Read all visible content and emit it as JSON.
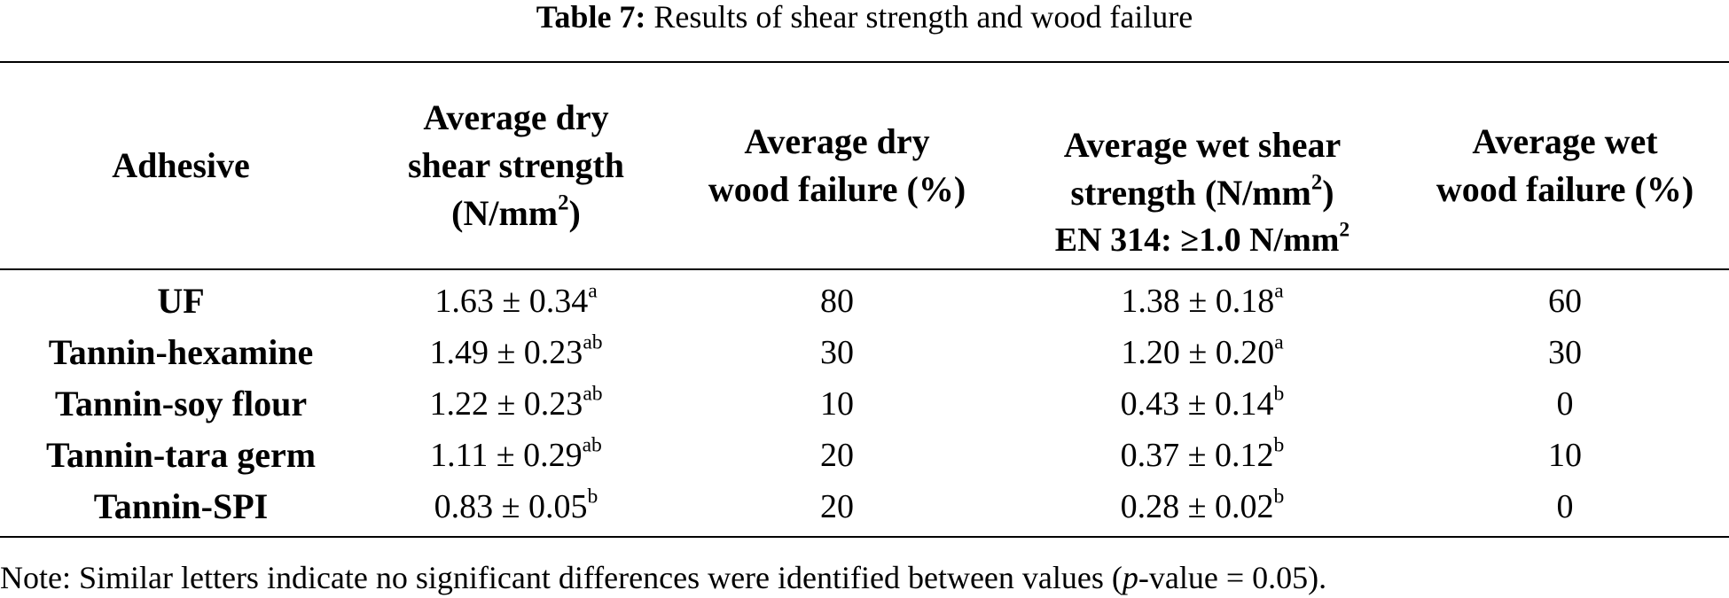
{
  "caption": {
    "label": "Table 7:",
    "text": "Results of shear strength and wood failure"
  },
  "headers": [
    {
      "line1": "Average dry",
      "line2": "shear strength",
      "line3": "(N/mm",
      "sup": "2",
      "close": ")"
    },
    {
      "line1": "Average dry",
      "line2": "wood failure (%)"
    },
    {
      "line1": "Average wet shear",
      "line2": "strength (N/mm",
      "sup": "2",
      "close": ")"
    },
    {
      "line1": "Average wet",
      "line2": "wood failure (%)"
    }
  ],
  "header_adhesive": "Adhesive",
  "standard_note": {
    "text": "EN 314: ≥1.0 N/mm",
    "sup": "2"
  },
  "rows": [
    {
      "adhesive": "UF",
      "dry_strength": "1.63 ± 0.34",
      "dry_sup": "a",
      "dry_failure": "80",
      "wet_strength": "1.38 ± 0.18",
      "wet_sup": "a",
      "wet_failure": "60"
    },
    {
      "adhesive": "Tannin-hexamine",
      "dry_strength": "1.49 ± 0.23",
      "dry_sup": "ab",
      "dry_failure": "30",
      "wet_strength": "1.20 ± 0.20",
      "wet_sup": "a",
      "wet_failure": "30"
    },
    {
      "adhesive": "Tannin-soy flour",
      "dry_strength": "1.22 ± 0.23",
      "dry_sup": "ab",
      "dry_failure": "10",
      "wet_strength": "0.43 ± 0.14",
      "wet_sup": "b",
      "wet_failure": "0"
    },
    {
      "adhesive": "Tannin-tara germ",
      "dry_strength": "1.11 ± 0.29",
      "dry_sup": "ab",
      "dry_failure": "20",
      "wet_strength": "0.37 ± 0.12",
      "wet_sup": "b",
      "wet_failure": "10"
    },
    {
      "adhesive": "Tannin-SPI",
      "dry_strength": "0.83 ± 0.05",
      "dry_sup": "b",
      "dry_failure": "20",
      "wet_strength": "0.28 ± 0.02",
      "wet_sup": "b",
      "wet_failure": "0"
    }
  ],
  "note": {
    "before": "Note: Similar letters indicate no significant differences were identified between values (",
    "italic": "p",
    "after": "-value = 0.05)."
  }
}
